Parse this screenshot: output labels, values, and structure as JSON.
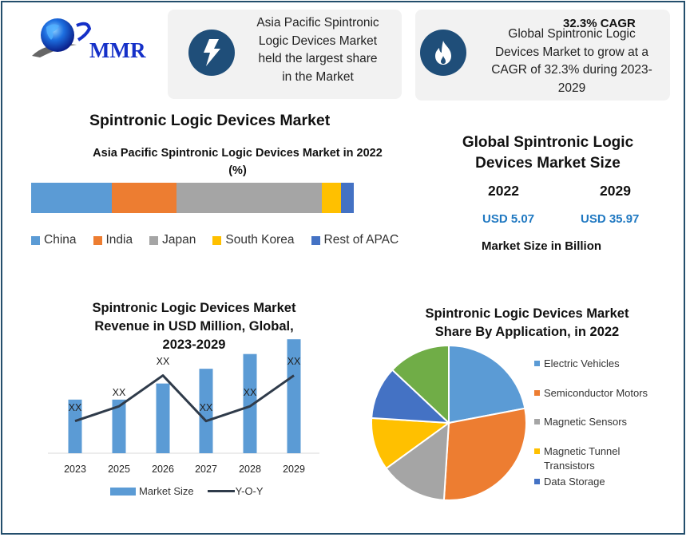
{
  "logo": {
    "text": "MMR",
    "icon": "globe-icon"
  },
  "cards": [
    {
      "icon": "lightning-bolt-icon",
      "text": "Asia Pacific Spintronic Logic Devices Market held the largest share in the Market",
      "lines": [
        "Asia Pacific Spintronic",
        "Logic Devices Market",
        "held the largest share",
        "in the Market"
      ]
    },
    {
      "icon": "flame-icon",
      "title": "32.3% CAGR",
      "lines": [
        "Global Spintronic  Logic",
        "Devices Market to grow at a",
        "CAGR of 32.3% during  2023-",
        "2029"
      ]
    }
  ],
  "main_title": "Spintronic  Logic Devices Market",
  "market_size": {
    "title_lines": [
      "Global Spintronic Logic",
      "Devices Market Size"
    ],
    "year_a": "2022",
    "year_b": "2029",
    "value_a": "USD 5.07",
    "value_b": "USD 35.97",
    "unit": "Market Size in Billion"
  },
  "colors": {
    "frame": "#234e6c",
    "icon_circle": "#1f4e79",
    "card_bg": "#f2f2f2",
    "usd_value": "#1f78c1",
    "blue": "#5b9bd5",
    "orange": "#ed7d31",
    "gray": "#a5a5a5",
    "yellow": "#ffc000",
    "darkblue": "#4472c4",
    "green": "#70ad47",
    "line": "#2f3b4a"
  },
  "chart_data": [
    {
      "type": "bar",
      "stacked": true,
      "orientation": "horizontal",
      "title": "Asia Pacific Spintronic Logic Devices Market in 2022 (%)",
      "title_lines": [
        "Asia Pacific Spintronic Logic Devices Market in 2022",
        "(%)"
      ],
      "categories": [
        "China",
        "India",
        "Japan",
        "South Korea",
        "Rest of APAC"
      ],
      "values": [
        25,
        20,
        45,
        6,
        4
      ],
      "colors": [
        "#5b9bd5",
        "#ed7d31",
        "#a5a5a5",
        "#ffc000",
        "#4472c4"
      ],
      "legend_position": "bottom",
      "xlabel": "",
      "ylabel": ""
    },
    {
      "type": "bar",
      "title": "Spintronic Logic Devices  Market Revenue in USD Million, Global, 2023-2029",
      "title_lines": [
        "Spintronic Logic Devices  Market",
        "Revenue in USD Million, Global,",
        "2023-2029"
      ],
      "categories": [
        "2023",
        "2025",
        "2026",
        "2027",
        "2028",
        "2029"
      ],
      "series": [
        {
          "name": "Market Size",
          "type": "bar",
          "values": [
            40,
            40,
            52,
            63,
            74,
            85
          ],
          "labels": [
            "XX",
            "XX",
            "XX",
            "XX",
            "XX",
            "XX"
          ]
        },
        {
          "name": "Y-O-Y",
          "type": "line",
          "values": [
            24,
            35,
            58,
            24,
            35,
            58
          ]
        }
      ],
      "note": "values are relative heights; actual figures are masked as XX",
      "legend_position": "bottom",
      "grid": false,
      "xlabel": "",
      "ylabel": ""
    },
    {
      "type": "pie",
      "title": "Spintronic Logic Devices  Market Share By Application, in 2022",
      "title_lines": [
        "Spintronic Logic Devices  Market",
        "Share By Application, in 2022"
      ],
      "categories": [
        "Electric Vehicles",
        "Semiconductor Motors",
        "Magnetic Sensors",
        "Magnetic Tunnel Transistors",
        "Data Storage",
        "(unlabeled)"
      ],
      "values": [
        22,
        29,
        14,
        11,
        11,
        13
      ],
      "colors": [
        "#5b9bd5",
        "#ed7d31",
        "#a5a5a5",
        "#ffc000",
        "#4472c4",
        "#70ad47"
      ],
      "legend_position": "right"
    }
  ],
  "pie_legend": [
    {
      "lines": [
        "Electric Vehicles"
      ]
    },
    {
      "lines": [
        "Semiconductor Motors"
      ]
    },
    {
      "lines": [
        "Magnetic Sensors"
      ]
    },
    {
      "lines": [
        "Magnetic Tunnel",
        "Transistors"
      ]
    },
    {
      "lines": [
        "Data Storage"
      ]
    }
  ],
  "bar_legend": {
    "bar": "Market Size",
    "line": "Y-O-Y"
  }
}
